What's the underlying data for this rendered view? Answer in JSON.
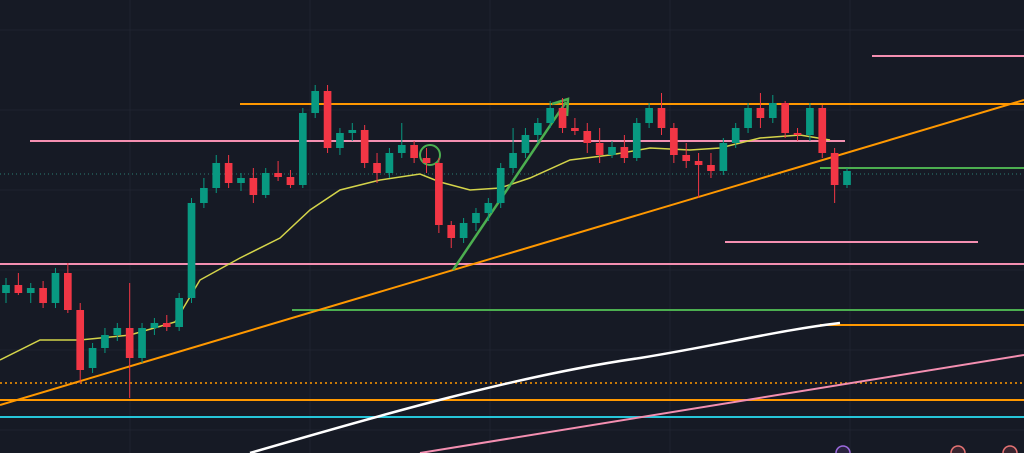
{
  "chart_data": {
    "type": "candlestick",
    "up_color": "#089981",
    "down_color": "#f23645",
    "ylim": [
      0,
      453
    ],
    "open": [
      160,
      168,
      160,
      165,
      150,
      180,
      143,
      85,
      105,
      118,
      125,
      95,
      125,
      130,
      126,
      155,
      250,
      265,
      290,
      270,
      275,
      258,
      280,
      276,
      268,
      340,
      362,
      305,
      320,
      323,
      290,
      280,
      300,
      308,
      295,
      290,
      228,
      215,
      230,
      240,
      250,
      285,
      300,
      318,
      330,
      345,
      325,
      322,
      310,
      298,
      306,
      295,
      330,
      345,
      325,
      298,
      292,
      288,
      282,
      310,
      325,
      345,
      335,
      350,
      320,
      318,
      345,
      300,
      268
    ],
    "high": [
      175,
      180,
      170,
      172,
      185,
      190,
      150,
      110,
      125,
      130,
      170,
      130,
      135,
      138,
      160,
      255,
      275,
      298,
      298,
      280,
      285,
      285,
      292,
      283,
      345,
      368,
      368,
      325,
      330,
      328,
      300,
      305,
      330,
      312,
      305,
      295,
      232,
      235,
      245,
      255,
      290,
      325,
      325,
      335,
      352,
      355,
      335,
      330,
      325,
      312,
      318,
      335,
      350,
      360,
      330,
      310,
      300,
      300,
      315,
      330,
      350,
      360,
      358,
      352,
      325,
      350,
      348,
      305,
      285
    ],
    "low": [
      150,
      158,
      150,
      145,
      145,
      140,
      70,
      80,
      100,
      112,
      55,
      90,
      118,
      122,
      122,
      150,
      245,
      260,
      265,
      262,
      250,
      255,
      272,
      265,
      265,
      335,
      300,
      298,
      312,
      285,
      270,
      275,
      295,
      290,
      280,
      220,
      205,
      210,
      222,
      232,
      245,
      280,
      295,
      310,
      325,
      320,
      318,
      300,
      290,
      295,
      290,
      292,
      325,
      318,
      290,
      285,
      255,
      275,
      278,
      305,
      320,
      325,
      330,
      315,
      312,
      312,
      295,
      250,
      265
    ],
    "close": [
      168,
      160,
      165,
      150,
      180,
      143,
      83,
      105,
      118,
      125,
      95,
      125,
      130,
      126,
      155,
      250,
      265,
      290,
      270,
      275,
      258,
      280,
      276,
      268,
      340,
      362,
      305,
      320,
      323,
      290,
      280,
      300,
      308,
      295,
      290,
      228,
      215,
      230,
      240,
      250,
      285,
      300,
      318,
      330,
      345,
      325,
      322,
      310,
      298,
      306,
      295,
      330,
      345,
      325,
      298,
      292,
      288,
      282,
      310,
      325,
      345,
      335,
      350,
      320,
      318,
      345,
      300,
      268,
      282
    ]
  }
}
